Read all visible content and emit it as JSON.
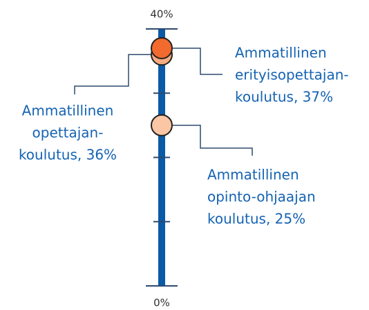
{
  "chart_data": {
    "type": "dot",
    "ylim": [
      0,
      40
    ],
    "yticks": [
      {
        "value": 0,
        "label": "0%"
      },
      {
        "value": 40,
        "label": "40%"
      }
    ],
    "minor_yticks": [
      10,
      20,
      30
    ],
    "axis_color": "#0b5aa6",
    "values": [
      37,
      36,
      25
    ],
    "colors": [
      "#f26a2e",
      "#f6ac80",
      "#fbc6a4"
    ],
    "value_labels": [
      [
        "Ammatillinen",
        "erityisopettajan-",
        "koulutus, 37%"
      ],
      [
        "Ammatillinen",
        "opettajan-",
        "koulutus, 36%"
      ],
      [
        "Ammatillinen",
        "opinto-ohjaajan",
        "koulutus, 25%"
      ]
    ]
  }
}
